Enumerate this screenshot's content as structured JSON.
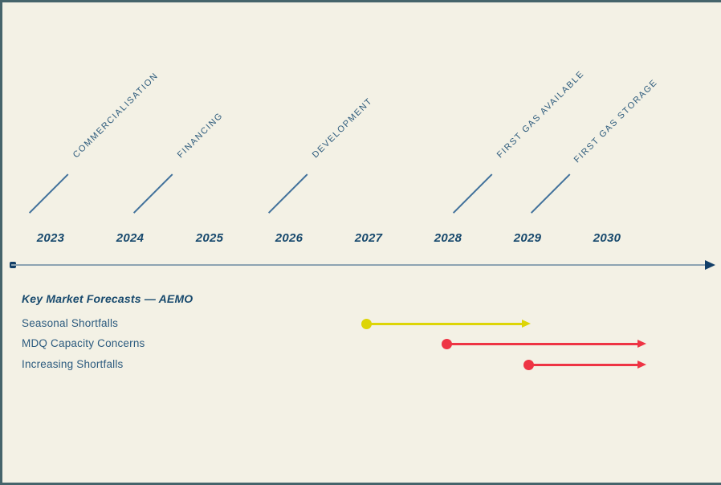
{
  "slide": {
    "background_color": "#f3f1e5",
    "frame_color": "#45646b"
  },
  "timeline": {
    "years": [
      "2023",
      "2024",
      "2025",
      "2026",
      "2027",
      "2028",
      "2029",
      "2030"
    ],
    "milestones": [
      {
        "label": "COMMERCIALISATION",
        "year": "2023"
      },
      {
        "label": "FINANCING",
        "year": "2024"
      },
      {
        "label": "DEVELOPMENT",
        "year": "2026"
      },
      {
        "label": "FIRST GAS AVAILABLE",
        "year": "2028"
      },
      {
        "label": "FIRST GAS STORAGE",
        "year": "2029"
      }
    ],
    "colors": {
      "year_text": "#17496d",
      "milestone_text": "#2d5b7c",
      "tick_line": "#41719b",
      "axis_line": "#8ca3b2",
      "axis_endpoints": "#123f68"
    }
  },
  "forecasts": {
    "heading": "Key Market Forecasts — AEMO",
    "rows": [
      {
        "label": "Seasonal Shortfalls",
        "color": "#ddd506",
        "start_year": "2027",
        "end_year": "2029"
      },
      {
        "label": "MDQ Capacity Concerns",
        "color": "#ee3444",
        "start_year": "2028",
        "end_year": "beyond 2030"
      },
      {
        "label": "Increasing Shortfalls",
        "color": "#ee3444",
        "start_year": "2029",
        "end_year": "beyond 2030"
      }
    ]
  }
}
